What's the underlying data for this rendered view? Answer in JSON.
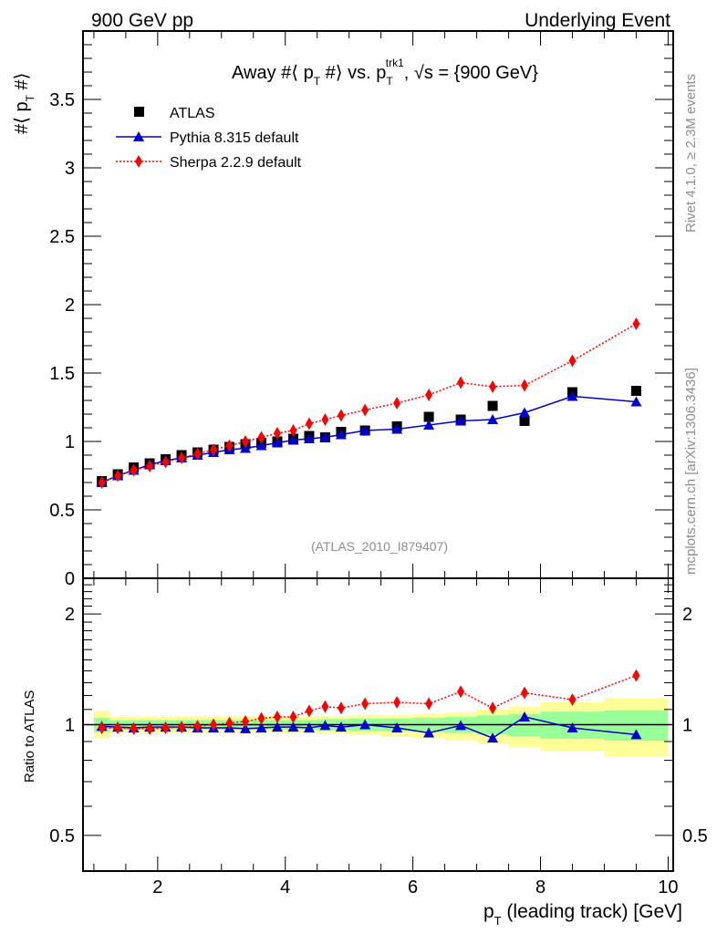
{
  "header": {
    "left": "900 GeV pp",
    "right": "Underlying Event"
  },
  "side_labels": {
    "rivet": "Rivet 4.1.0, ≥ 2.3M events",
    "mcplots": "mcplots.cern.ch [arXiv:1306.3436]"
  },
  "chart_data": [
    {
      "type": "scatter",
      "panel": "main",
      "title": {
        "pre": "Away #⟨ p",
        "sub1": "T",
        "mid": " #⟩ vs. p",
        "sub2": "T",
        "sup2": "trk1",
        "post": ", √s = {900 GeV}"
      },
      "ylabel": {
        "main": "#⟨ p",
        "sub": "T",
        "post": " #⟩"
      },
      "xlabel": {
        "main": "p",
        "sub": "T",
        "post": " (leading track) [GeV]"
      },
      "xlim": [
        0.83,
        10.08
      ],
      "ylim": [
        0,
        4.0
      ],
      "xticks": [
        2,
        4,
        6,
        8,
        10
      ],
      "yticks": [
        0,
        0.5,
        1,
        1.5,
        2,
        2.5,
        3,
        3.5
      ],
      "ytick_labels": [
        "0",
        "0.5",
        "1",
        "1.5",
        "2",
        "2.5",
        "3",
        "3.5"
      ],
      "watermark": "(ATLAS_2010_I879407)",
      "legend_position": "top-left",
      "x": [
        1.125,
        1.375,
        1.625,
        1.875,
        2.125,
        2.375,
        2.625,
        2.875,
        3.125,
        3.375,
        3.625,
        3.875,
        4.125,
        4.375,
        4.625,
        4.875,
        5.25,
        5.75,
        6.25,
        6.75,
        7.25,
        7.75,
        8.5,
        9.5
      ],
      "bin_edges": [
        1.0,
        1.25,
        1.5,
        1.75,
        2.0,
        2.25,
        2.5,
        2.75,
        3.0,
        3.25,
        3.5,
        3.75,
        4.0,
        4.25,
        4.5,
        4.75,
        5.0,
        5.5,
        6.0,
        6.5,
        7.0,
        7.5,
        8.0,
        9.0,
        10.0
      ],
      "series": [
        {
          "name": "ATLAS",
          "marker": "square",
          "color": "#000000",
          "line": "none",
          "values": [
            0.71,
            0.76,
            0.81,
            0.84,
            0.87,
            0.9,
            0.92,
            0.94,
            0.96,
            0.98,
            0.99,
            1.0,
            1.02,
            1.04,
            1.03,
            1.07,
            1.08,
            1.11,
            1.18,
            1.16,
            1.26,
            1.15,
            1.36,
            1.37
          ]
        },
        {
          "name": "Pythia 8.315 default",
          "marker": "triangle",
          "color": "#0000cc",
          "line": "solid",
          "values": [
            0.7,
            0.75,
            0.79,
            0.83,
            0.86,
            0.88,
            0.9,
            0.92,
            0.94,
            0.95,
            0.97,
            0.99,
            1.01,
            1.02,
            1.03,
            1.05,
            1.08,
            1.09,
            1.12,
            1.15,
            1.16,
            1.21,
            1.33,
            1.29
          ]
        },
        {
          "name": "Sherpa 2.2.9 default",
          "marker": "diamond",
          "color": "#ff0000",
          "line": "dotted",
          "values": [
            0.7,
            0.75,
            0.79,
            0.82,
            0.85,
            0.88,
            0.91,
            0.94,
            0.97,
            1.0,
            1.03,
            1.06,
            1.08,
            1.13,
            1.16,
            1.19,
            1.23,
            1.28,
            1.34,
            1.43,
            1.4,
            1.41,
            1.59,
            1.86
          ]
        }
      ]
    },
    {
      "type": "scatter",
      "panel": "ratio",
      "ylabel": "Ratio to ATLAS",
      "yscale": "log",
      "ylim": [
        0.4,
        2.5
      ],
      "yticks": [
        0.5,
        1,
        2
      ],
      "ytick_labels": [
        "0.5",
        "1",
        "2"
      ],
      "xlim": [
        0.83,
        10.08
      ],
      "xticks": [
        2,
        4,
        6,
        8,
        10
      ],
      "xtick_labels": [
        "2",
        "4",
        "6",
        "8",
        "10"
      ],
      "x": [
        1.125,
        1.375,
        1.625,
        1.875,
        2.125,
        2.375,
        2.625,
        2.875,
        3.125,
        3.375,
        3.625,
        3.875,
        4.125,
        4.375,
        4.625,
        4.875,
        5.25,
        5.75,
        6.25,
        6.75,
        7.25,
        7.75,
        8.5,
        9.5
      ],
      "bands": {
        "stat_green": {
          "color": "#99ff99",
          "up": [
            1.045,
            1.03,
            1.03,
            1.03,
            1.03,
            1.03,
            1.03,
            1.03,
            1.03,
            1.03,
            1.03,
            1.03,
            1.03,
            1.03,
            1.035,
            1.035,
            1.04,
            1.04,
            1.045,
            1.05,
            1.06,
            1.07,
            1.085,
            1.095
          ],
          "down": [
            0.955,
            0.97,
            0.97,
            0.97,
            0.97,
            0.97,
            0.97,
            0.97,
            0.97,
            0.97,
            0.97,
            0.97,
            0.97,
            0.97,
            0.965,
            0.965,
            0.96,
            0.96,
            0.955,
            0.95,
            0.94,
            0.93,
            0.915,
            0.905
          ]
        },
        "total_yellow": {
          "color": "#ffff99",
          "up": [
            1.09,
            1.05,
            1.05,
            1.05,
            1.05,
            1.05,
            1.05,
            1.05,
            1.05,
            1.05,
            1.05,
            1.05,
            1.05,
            1.05,
            1.055,
            1.055,
            1.06,
            1.06,
            1.07,
            1.08,
            1.1,
            1.12,
            1.15,
            1.18
          ],
          "down": [
            0.92,
            0.95,
            0.95,
            0.95,
            0.95,
            0.95,
            0.95,
            0.95,
            0.95,
            0.95,
            0.95,
            0.95,
            0.95,
            0.95,
            0.945,
            0.945,
            0.94,
            0.93,
            0.92,
            0.91,
            0.89,
            0.87,
            0.85,
            0.82
          ]
        }
      },
      "series": [
        {
          "name": "Pythia 8.315 default",
          "marker": "triangle",
          "color": "#0000cc",
          "line": "solid",
          "values": [
            0.99,
            0.985,
            0.98,
            0.985,
            0.985,
            0.985,
            0.98,
            0.98,
            0.98,
            0.975,
            0.98,
            0.985,
            0.985,
            0.98,
            0.995,
            0.985,
            1.0,
            0.98,
            0.95,
            0.995,
            0.92,
            1.05,
            0.98,
            0.94
          ]
        },
        {
          "name": "Sherpa 2.2.9 default",
          "marker": "diamond",
          "color": "#ff0000",
          "line": "dotted",
          "values": [
            0.98,
            0.98,
            0.975,
            0.975,
            0.98,
            0.985,
            0.99,
            1.0,
            1.01,
            1.02,
            1.04,
            1.05,
            1.05,
            1.09,
            1.12,
            1.11,
            1.14,
            1.15,
            1.14,
            1.23,
            1.11,
            1.22,
            1.17,
            1.36
          ]
        }
      ]
    }
  ]
}
